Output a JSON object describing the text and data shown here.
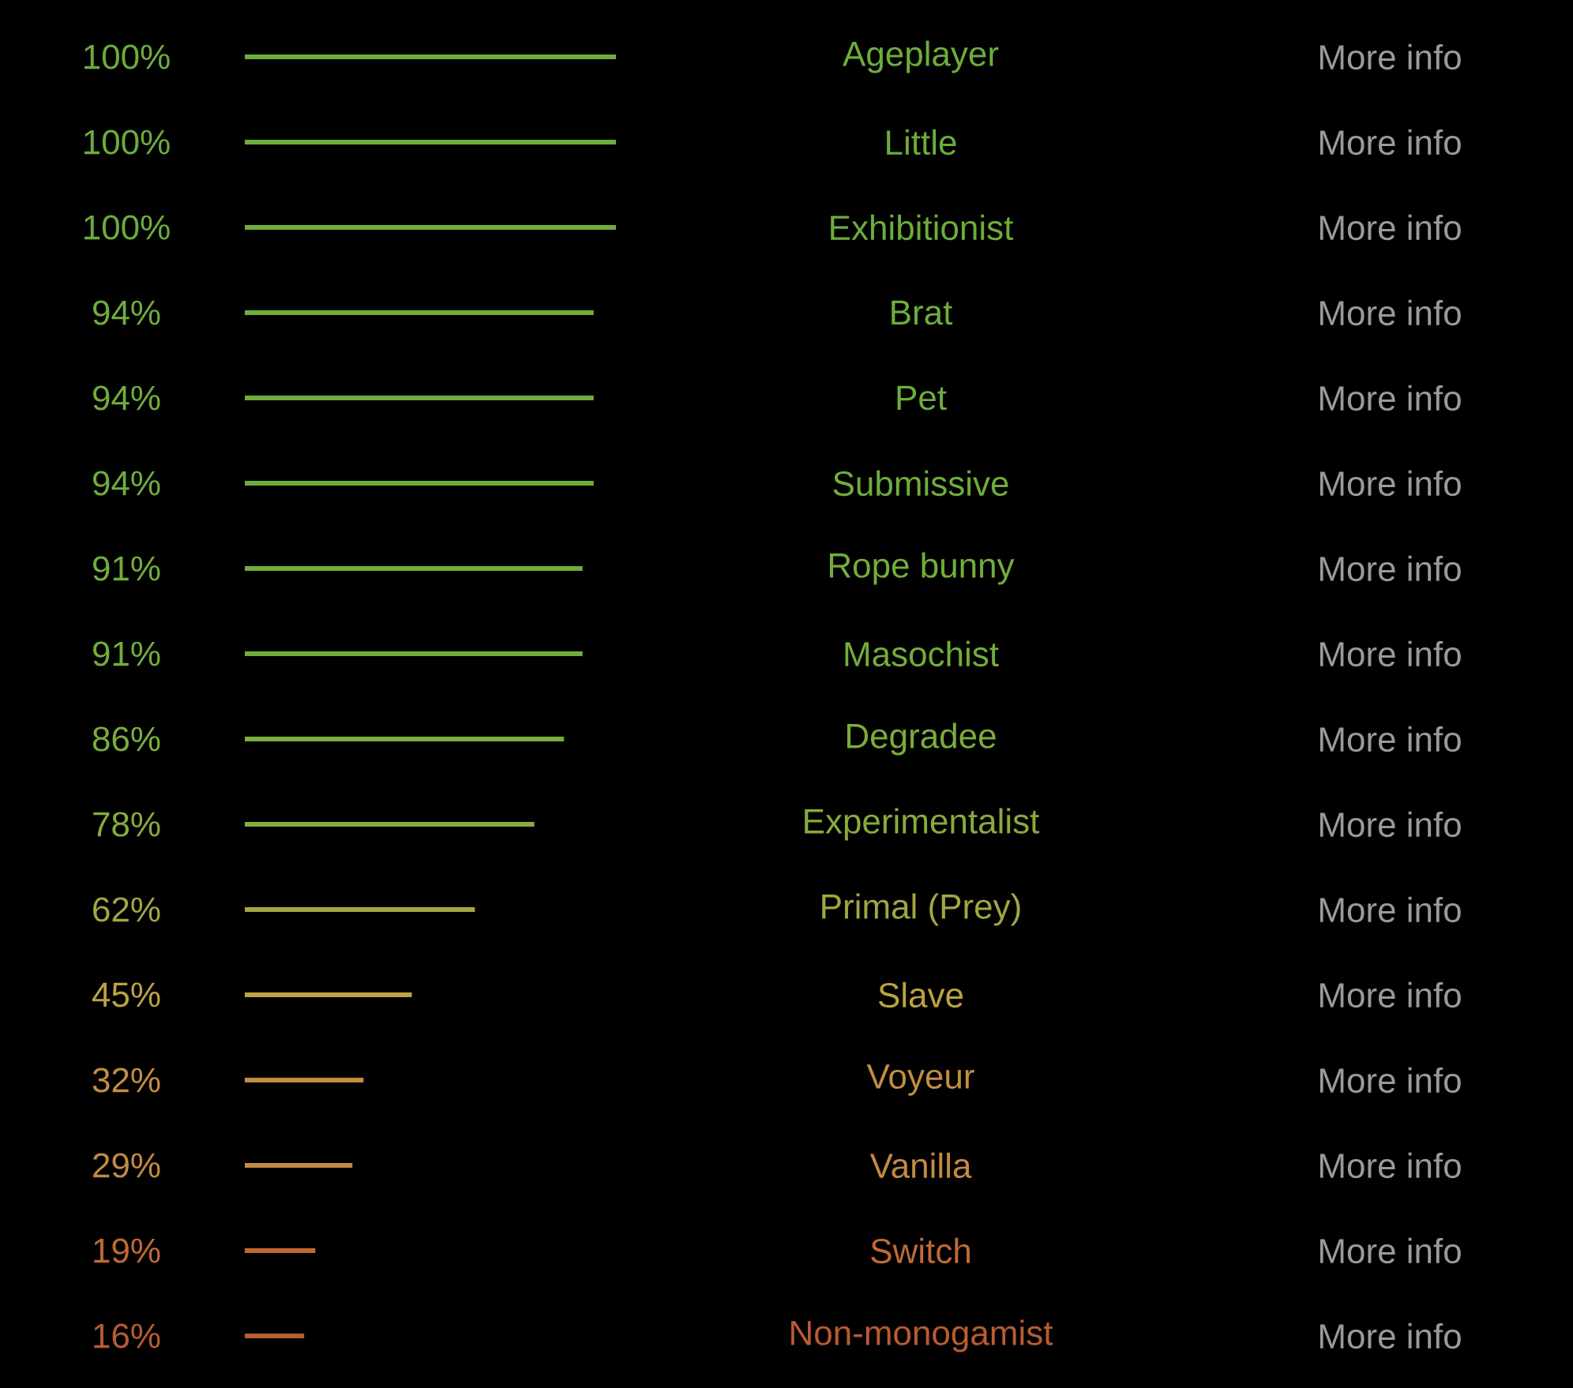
{
  "chart_data": {
    "type": "bar",
    "orientation": "horizontal",
    "categories": [
      "Ageplayer",
      "Little",
      "Exhibitionist",
      "Brat",
      "Pet",
      "Submissive",
      "Rope bunny",
      "Masochist",
      "Degradee",
      "Experimentalist",
      "Primal (Prey)",
      "Slave",
      "Voyeur",
      "Vanilla",
      "Switch",
      "Non-monogamist"
    ],
    "values": [
      100,
      100,
      100,
      94,
      94,
      94,
      91,
      91,
      86,
      78,
      62,
      45,
      32,
      29,
      19,
      16
    ],
    "value_labels": [
      "100%",
      "100%",
      "100%",
      "94%",
      "94%",
      "94%",
      "91%",
      "91%",
      "86%",
      "78%",
      "62%",
      "45%",
      "32%",
      "29%",
      "19%",
      "16%"
    ],
    "colors": [
      "#6cad3c",
      "#6cad3c",
      "#6cad3c",
      "#6fad3c",
      "#6fad3c",
      "#6fad3c",
      "#72ad3c",
      "#72ad3c",
      "#7aad3c",
      "#88ab3e",
      "#a3a642",
      "#bba342",
      "#c38d43",
      "#c38a43",
      "#c06a35",
      "#b85c32"
    ],
    "xlim": [
      0,
      100
    ],
    "annotations": [
      "More info",
      "More info",
      "More info",
      "More info",
      "More info",
      "More info",
      "More info",
      "More info",
      "More info",
      "More info",
      "More info",
      "More info",
      "More info",
      "More info",
      "More info",
      "More info"
    ]
  }
}
